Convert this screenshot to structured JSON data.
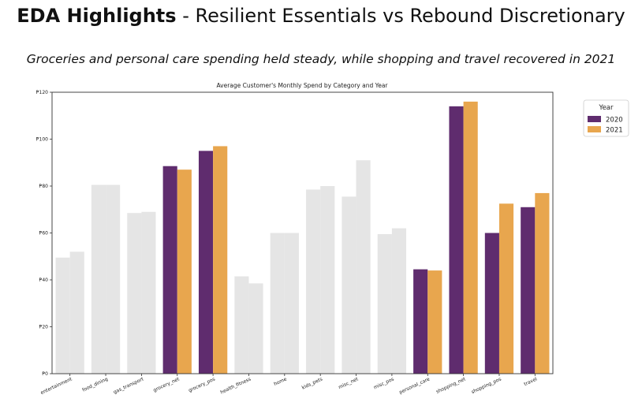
{
  "header": {
    "title_bold": "EDA Highlights",
    "title_rest": " - Resilient Essentials vs Rebound Discretionary",
    "subtitle": "Groceries and personal care spending held steady, while shopping and travel recovered in 2021"
  },
  "chart_data": {
    "type": "bar",
    "title": "Average Customer's Monthly Spend by Category and Year",
    "xlabel": "",
    "ylabel": "",
    "ylim": [
      0,
      120
    ],
    "yticks": [
      0,
      20,
      40,
      60,
      80,
      100,
      120
    ],
    "ytick_labels": [
      "₱0",
      "₱20",
      "₱40",
      "₱60",
      "₱80",
      "₱100",
      "₱120"
    ],
    "categories": [
      "entertainment",
      "food_dining",
      "gas_transport",
      "grocery_net",
      "grocery_pos",
      "health_fitness",
      "home",
      "kids_pets",
      "misc_net",
      "misc_pos",
      "personal_care",
      "shopping_net",
      "shopping_pos",
      "travel"
    ],
    "highlighted": [
      "grocery_net",
      "grocery_pos",
      "personal_care",
      "shopping_net",
      "shopping_pos",
      "travel"
    ],
    "series": [
      {
        "name": "2020",
        "color": "#5f2c6e",
        "values": [
          49.5,
          80.5,
          68.5,
          88.5,
          95,
          41.5,
          60,
          78.5,
          75.5,
          59.5,
          44.5,
          114,
          60,
          71
        ]
      },
      {
        "name": "2021",
        "color": "#e8a64e",
        "values": [
          52,
          80.5,
          69,
          87,
          97,
          38.5,
          60,
          80,
          91,
          62,
          44,
          116,
          72.5,
          77
        ]
      }
    ],
    "muted_color": "#e5e5e5",
    "legend": {
      "title": "Year",
      "position": "right"
    },
    "grid": false
  }
}
